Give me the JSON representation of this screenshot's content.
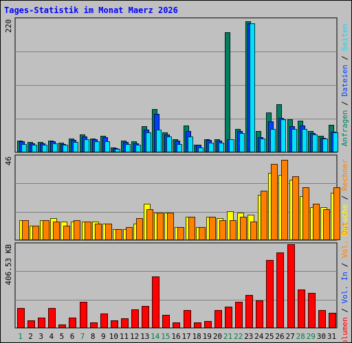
{
  "title": "Tages-Statistik im Monat Maerz 2026",
  "colors": {
    "background": "#c0c0c0",
    "title": "#0000ff",
    "frame": "#000000",
    "grid": "#808080",
    "weekday": "#000000",
    "weekend": "#008040",
    "anfragen": "#008060",
    "dateien": "#0040ff",
    "seiten": "#00e0ff",
    "besuche": "#ffff00",
    "rechner": "#ff8000",
    "vol_out": "#ff8000",
    "vol_in": "#0040ff",
    "volumen": "#ff0000"
  },
  "chart_data": [
    {
      "type": "bar",
      "panel": "top",
      "ymax_label": "220",
      "ylim": [
        0,
        220
      ],
      "grid": true,
      "right_label": [
        {
          "text": "Anfragen",
          "color": "#008060"
        },
        {
          "text": " / ",
          "color": "#000000"
        },
        {
          "text": "Dateien",
          "color": "#0040ff"
        },
        {
          "text": " / ",
          "color": "#000000"
        },
        {
          "text": "Seiten",
          "color": "#00e0ff"
        }
      ],
      "x": [
        1,
        2,
        3,
        4,
        5,
        6,
        7,
        8,
        9,
        10,
        11,
        12,
        13,
        14,
        15,
        16,
        17,
        18,
        19,
        20,
        21,
        22,
        23,
        24,
        25,
        26,
        27,
        28,
        29,
        30,
        31
      ],
      "series": [
        {
          "name": "Anfragen",
          "color": "#008060",
          "values": [
            19,
            17,
            17,
            19,
            16,
            23,
            30,
            23,
            27,
            8,
            19,
            18,
            43,
            71,
            33,
            22,
            44,
            13,
            22,
            21,
            199,
            38,
            217,
            35,
            66,
            79,
            54,
            52,
            35,
            27,
            45
          ]
        },
        {
          "name": "Dateien",
          "color": "#0040ff",
          "values": [
            18,
            15,
            15,
            18,
            14,
            20,
            26,
            21,
            25,
            7,
            17,
            15,
            37,
            63,
            30,
            19,
            35,
            12,
            20,
            19,
            22,
            35,
            213,
            25,
            51,
            57,
            43,
            44,
            32,
            24,
            34
          ]
        },
        {
          "name": "Seiten",
          "color": "#00e0ff",
          "values": [
            14,
            13,
            12,
            15,
            12,
            17,
            22,
            18,
            18,
            6,
            14,
            13,
            33,
            37,
            26,
            14,
            26,
            8,
            16,
            16,
            22,
            32,
            213,
            23,
            39,
            54,
            39,
            38,
            29,
            23,
            33
          ]
        }
      ]
    },
    {
      "type": "bar",
      "panel": "middle",
      "ymax_label": "46",
      "ylim": [
        0,
        46
      ],
      "grid": true,
      "right_label": [
        {
          "text": "Besuche",
          "color": "#ffff00"
        },
        {
          "text": " / ",
          "color": "#000000"
        },
        {
          "text": "Rechner",
          "color": "#ff8000"
        }
      ],
      "x": [
        1,
        2,
        3,
        4,
        5,
        6,
        7,
        8,
        9,
        10,
        11,
        12,
        13,
        14,
        15,
        16,
        17,
        18,
        19,
        20,
        21,
        22,
        23,
        24,
        25,
        26,
        27,
        28,
        29,
        30,
        31
      ],
      "series": [
        {
          "name": "Besuche",
          "color": "#ffff00",
          "values": [
            11,
            8,
            11,
            12,
            10,
            10,
            10,
            10,
            9,
            6,
            6,
            9,
            20,
            15,
            15,
            7,
            13,
            7,
            13,
            12,
            16,
            15,
            14,
            25,
            37,
            36,
            33,
            24,
            18,
            18,
            26
          ]
        },
        {
          "name": "Rechner",
          "color": "#ff8000",
          "values": [
            11,
            8,
            11,
            10,
            8,
            11,
            10,
            9,
            9,
            6,
            7,
            12,
            17,
            15,
            15,
            7,
            13,
            7,
            13,
            11,
            11,
            13,
            10,
            27,
            42,
            44,
            35,
            29,
            20,
            17,
            29
          ]
        }
      ]
    },
    {
      "type": "bar",
      "panel": "bottom",
      "ymax_label": "406.53 KB",
      "ylim": [
        0,
        406.53
      ],
      "grid": true,
      "right_label": [
        {
          "text": "Volumen",
          "color": "#ff0000"
        },
        {
          "text": " / ",
          "color": "#000000"
        },
        {
          "text": "Vol. In",
          "color": "#0040ff"
        },
        {
          "text": " / ",
          "color": "#000000"
        },
        {
          "text": "Vol. Out",
          "color": "#ff8000"
        }
      ],
      "x": [
        1,
        2,
        3,
        4,
        5,
        6,
        7,
        8,
        9,
        10,
        11,
        12,
        13,
        14,
        15,
        16,
        17,
        18,
        19,
        20,
        21,
        22,
        23,
        24,
        25,
        26,
        27,
        28,
        29,
        30,
        31
      ],
      "series": [
        {
          "name": "Volumen",
          "color": "#ff0000",
          "values": [
            95,
            38,
            50,
            95,
            18,
            50,
            128,
            28,
            70,
            35,
            48,
            90,
            108,
            250,
            63,
            25,
            88,
            28,
            33,
            85,
            102,
            125,
            160,
            132,
            330,
            365,
            406,
            185,
            170,
            85,
            73
          ]
        }
      ]
    }
  ],
  "x_axis": {
    "labels": [
      "1",
      "2",
      "3",
      "4",
      "5",
      "6",
      "7",
      "8",
      "9",
      "10",
      "11",
      "12",
      "13",
      "14",
      "15",
      "16",
      "17",
      "18",
      "19",
      "20",
      "21",
      "22",
      "23",
      "24",
      "25",
      "26",
      "27",
      "28",
      "29",
      "30",
      "31"
    ],
    "weekend": [
      1,
      7,
      14,
      15,
      21,
      22,
      28,
      29
    ]
  }
}
